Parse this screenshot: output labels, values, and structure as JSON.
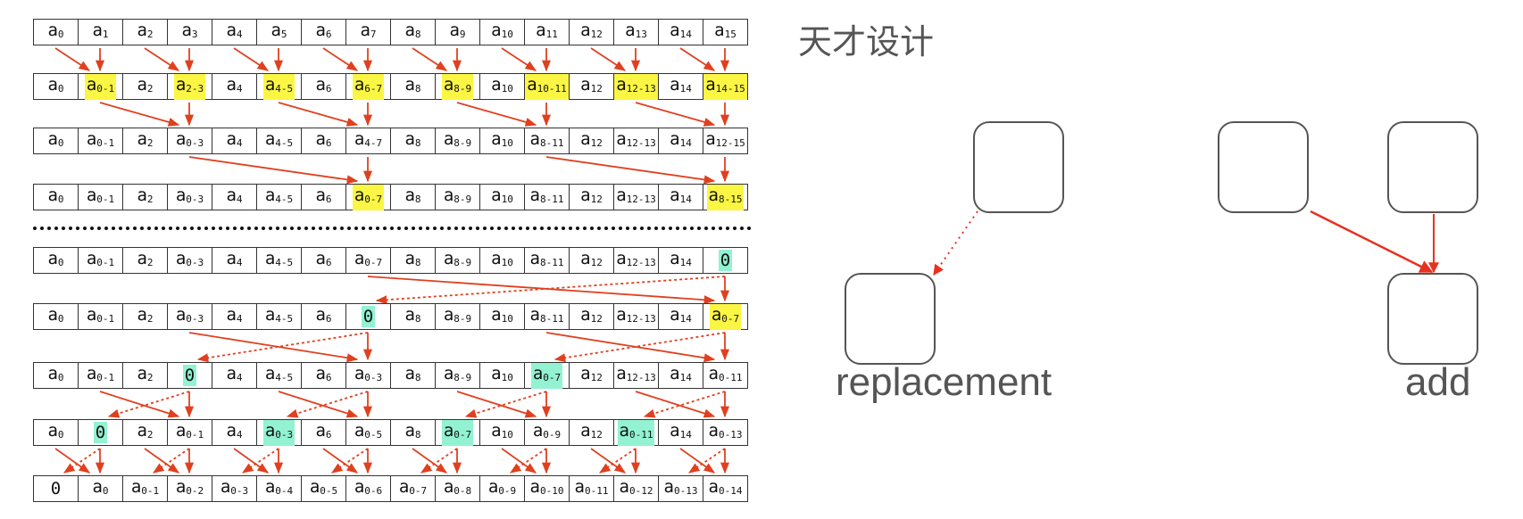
{
  "scan_rows": [
    {
      "cells": [
        "a0",
        "a1",
        "a2",
        "a3",
        "a4",
        "a5",
        "a6",
        "a7",
        "a8",
        "a9",
        "a10",
        "a11",
        "a12",
        "a13",
        "a14",
        "a15"
      ],
      "highlights": {}
    },
    {
      "cells": [
        "a0",
        "a0-1",
        "a2",
        "a2-3",
        "a4",
        "a4-5",
        "a6",
        "a6-7",
        "a8",
        "a8-9",
        "a10",
        "a10-11",
        "a12",
        "a12-13",
        "a14",
        "a14-15"
      ],
      "highlights": {
        "1": "yellow",
        "3": "yellow",
        "5": "yellow",
        "7": "yellow",
        "9": "yellow",
        "11": "yellow",
        "13": "yellow",
        "15": "yellow"
      }
    },
    {
      "cells": [
        "a0",
        "a0-1",
        "a2",
        "a0-3",
        "a4",
        "a4-5",
        "a6",
        "a4-7",
        "a8",
        "a8-9",
        "a10",
        "a8-11",
        "a12",
        "a12-13",
        "a14",
        "a12-15"
      ],
      "highlights": {}
    },
    {
      "cells": [
        "a0",
        "a0-1",
        "a2",
        "a0-3",
        "a4",
        "a4-5",
        "a6",
        "a0-7",
        "a8",
        "a8-9",
        "a10",
        "a8-11",
        "a12",
        "a12-13",
        "a14",
        "a8-15"
      ],
      "highlights": {
        "7": "yellow",
        "15": "yellow"
      }
    },
    {
      "cells": [
        "a0",
        "a0-1",
        "a2",
        "a0-3",
        "a4",
        "a4-5",
        "a6",
        "a0-7",
        "a8",
        "a8-9",
        "a10",
        "a8-11",
        "a12",
        "a12-13",
        "a14",
        "0"
      ],
      "highlights": {
        "15": "green"
      }
    },
    {
      "cells": [
        "a0",
        "a0-1",
        "a2",
        "a0-3",
        "a4",
        "a4-5",
        "a6",
        "0",
        "a8",
        "a8-9",
        "a10",
        "a8-11",
        "a12",
        "a12-13",
        "a14",
        "a0-7"
      ],
      "highlights": {
        "7": "green",
        "15": "yellow"
      }
    },
    {
      "cells": [
        "a0",
        "a0-1",
        "a2",
        "0",
        "a4",
        "a4-5",
        "a6",
        "a0-3",
        "a8",
        "a8-9",
        "a10",
        "a0-7",
        "a12",
        "a12-13",
        "a14",
        "a0-11"
      ],
      "highlights": {
        "3": "green",
        "11": "green"
      }
    },
    {
      "cells": [
        "a0",
        "0",
        "a2",
        "a0-1",
        "a4",
        "a0-3",
        "a6",
        "a0-5",
        "a8",
        "a0-7",
        "a10",
        "a0-9",
        "a12",
        "a0-11",
        "a14",
        "a0-13"
      ],
      "highlights": {
        "1": "green",
        "5": "green",
        "9": "green",
        "13": "green"
      }
    },
    {
      "cells": [
        "0",
        "a0",
        "a0-1",
        "a0-2",
        "a0-3",
        "a0-4",
        "a0-5",
        "a0-6",
        "a0-7",
        "a0-8",
        "a0-9",
        "a0-10",
        "a0-11",
        "a0-12",
        "a0-13",
        "a0-14"
      ],
      "highlights": {}
    }
  ],
  "edges": [
    [
      [
        0,
        1,
        "solid"
      ],
      [
        1,
        1,
        "solid"
      ],
      [
        2,
        3,
        "solid"
      ],
      [
        3,
        3,
        "solid"
      ],
      [
        4,
        5,
        "solid"
      ],
      [
        5,
        5,
        "solid"
      ],
      [
        6,
        7,
        "solid"
      ],
      [
        7,
        7,
        "solid"
      ],
      [
        8,
        9,
        "solid"
      ],
      [
        9,
        9,
        "solid"
      ],
      [
        10,
        11,
        "solid"
      ],
      [
        11,
        11,
        "solid"
      ],
      [
        12,
        13,
        "solid"
      ],
      [
        13,
        13,
        "solid"
      ],
      [
        14,
        15,
        "solid"
      ],
      [
        15,
        15,
        "solid"
      ]
    ],
    [
      [
        1,
        3,
        "solid"
      ],
      [
        3,
        3,
        "solid"
      ],
      [
        5,
        7,
        "solid"
      ],
      [
        7,
        7,
        "solid"
      ],
      [
        9,
        11,
        "solid"
      ],
      [
        11,
        11,
        "solid"
      ],
      [
        13,
        15,
        "solid"
      ],
      [
        15,
        15,
        "solid"
      ]
    ],
    [
      [
        3,
        7,
        "solid"
      ],
      [
        7,
        7,
        "solid"
      ],
      [
        11,
        15,
        "solid"
      ],
      [
        15,
        15,
        "solid"
      ]
    ],
    [],
    [
      [
        7,
        15,
        "solid"
      ],
      [
        15,
        7,
        "dashed"
      ],
      [
        15,
        15,
        "solid"
      ]
    ],
    [
      [
        3,
        7,
        "solid"
      ],
      [
        7,
        3,
        "dashed"
      ],
      [
        7,
        7,
        "solid"
      ],
      [
        11,
        15,
        "solid"
      ],
      [
        15,
        11,
        "dashed"
      ],
      [
        15,
        15,
        "solid"
      ]
    ],
    [
      [
        1,
        3,
        "solid"
      ],
      [
        3,
        1,
        "dashed"
      ],
      [
        3,
        3,
        "solid"
      ],
      [
        5,
        7,
        "solid"
      ],
      [
        7,
        5,
        "dashed"
      ],
      [
        7,
        7,
        "solid"
      ],
      [
        9,
        11,
        "solid"
      ],
      [
        11,
        9,
        "dashed"
      ],
      [
        11,
        11,
        "solid"
      ],
      [
        13,
        15,
        "solid"
      ],
      [
        15,
        13,
        "dashed"
      ],
      [
        15,
        15,
        "solid"
      ]
    ],
    [
      [
        0,
        1,
        "solid"
      ],
      [
        1,
        0,
        "dashed"
      ],
      [
        1,
        1,
        "solid"
      ],
      [
        2,
        3,
        "solid"
      ],
      [
        3,
        2,
        "dashed"
      ],
      [
        3,
        3,
        "solid"
      ],
      [
        4,
        5,
        "solid"
      ],
      [
        5,
        4,
        "dashed"
      ],
      [
        5,
        5,
        "solid"
      ],
      [
        6,
        7,
        "solid"
      ],
      [
        7,
        6,
        "dashed"
      ],
      [
        7,
        7,
        "solid"
      ],
      [
        8,
        9,
        "solid"
      ],
      [
        9,
        8,
        "dashed"
      ],
      [
        9,
        9,
        "solid"
      ],
      [
        10,
        11,
        "solid"
      ],
      [
        11,
        10,
        "dashed"
      ],
      [
        11,
        11,
        "solid"
      ],
      [
        12,
        13,
        "solid"
      ],
      [
        13,
        12,
        "dashed"
      ],
      [
        13,
        13,
        "solid"
      ],
      [
        14,
        15,
        "solid"
      ],
      [
        15,
        14,
        "dashed"
      ],
      [
        15,
        15,
        "solid"
      ]
    ]
  ],
  "colors": {
    "arrow": "#e0401f",
    "yellow": "#fbf643",
    "green": "#92f2d2",
    "legend_arrow": "#e8301e"
  },
  "legend": {
    "title": "天才设计",
    "replacement_label": "replacement",
    "add_label": "add"
  }
}
